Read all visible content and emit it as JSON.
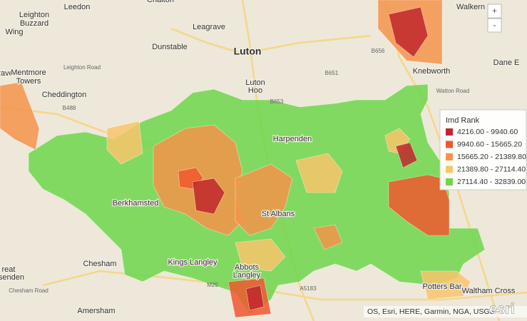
{
  "map": {
    "zoom_controls": [
      "+",
      "-"
    ],
    "place_labels": [
      "Chalton",
      "Leedon",
      "Leighton",
      "Buzzard",
      "Wing",
      "Leagrave",
      "Dunstable",
      "Luton",
      "Luton",
      "Hoo",
      "Walkern",
      "Dane E",
      "Knebworth",
      "rave",
      "Mentmore",
      "Towers",
      "Cheddington",
      "Chesham",
      "Amersham",
      "reat",
      "issenden",
      "Abbots",
      "Langley",
      "Potters Bar",
      "Waltham Cross",
      "Kings Langley",
      "Berkhamsted",
      "St Albans",
      "Harpenden"
    ],
    "road_labels": [
      "B656",
      "B651",
      "B653",
      "B488",
      "M25",
      "A5183",
      "Watton Road",
      "Leighton Road",
      "Chesham Road"
    ],
    "legend": {
      "title": "Imd Rank",
      "items": [
        {
          "label": "4216.00 - 9940.60",
          "color": "#c0272d"
        },
        {
          "label": "9940.60 - 15665.20",
          "color": "#f0572f"
        },
        {
          "label": "15665.20 - 21389.80",
          "color": "#f5934a"
        },
        {
          "label": "21389.80 - 27114.40",
          "color": "#f8c46c"
        },
        {
          "label": "27114.40 - 32839.00",
          "color": "#6fd64b"
        }
      ]
    },
    "attribution": "OS, Esri, HERE, Garmin, NGA, USGS",
    "logo": "esri"
  }
}
